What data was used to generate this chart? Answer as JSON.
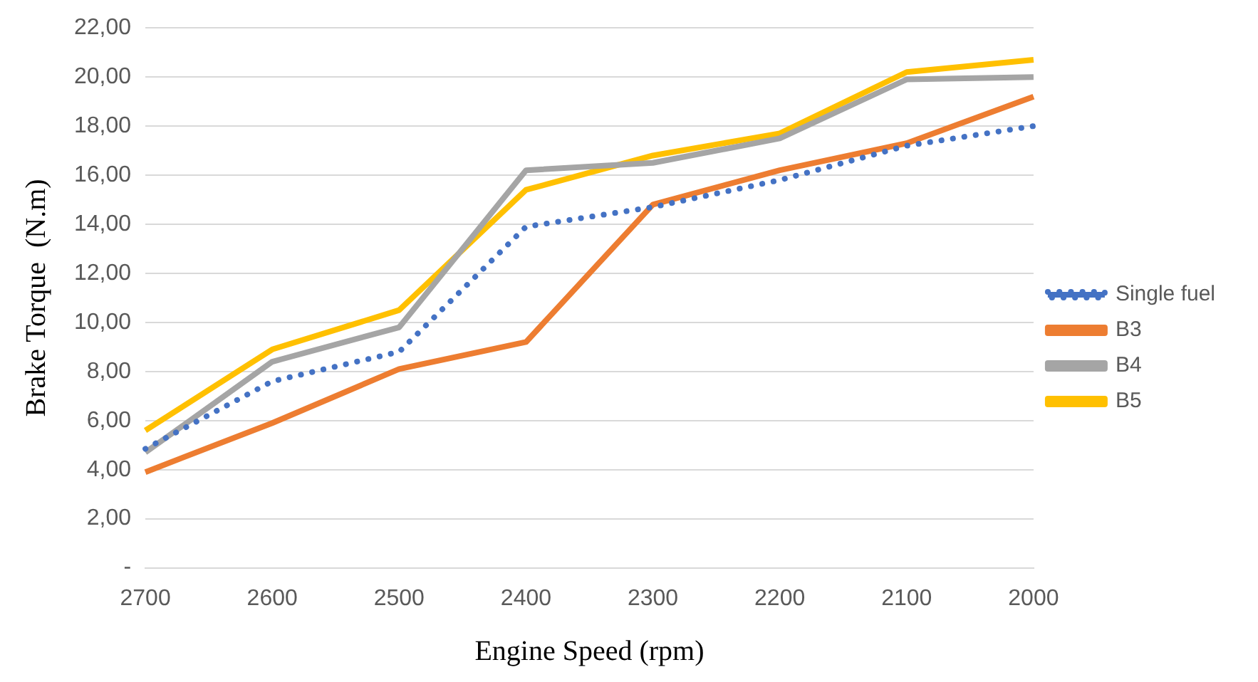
{
  "chart_data": {
    "type": "line",
    "xlabel": "Engine Speed (rpm)",
    "ylabel": "Brake Torque  (N.m)",
    "categories": [
      "2700",
      "2600",
      "2500",
      "2400",
      "2300",
      "2200",
      "2100",
      "2000"
    ],
    "series": [
      {
        "name": "Single fuel",
        "color": "#4472c4",
        "line_style": "dotted",
        "values": [
          4.85,
          7.6,
          8.8,
          13.9,
          14.7,
          15.8,
          17.2,
          18.0
        ]
      },
      {
        "name": "B3",
        "color": "#ed7d31",
        "values": [
          3.9,
          5.9,
          8.1,
          9.2,
          14.8,
          16.2,
          17.3,
          19.2
        ]
      },
      {
        "name": "B4",
        "color": "#a5a5a5",
        "values": [
          4.7,
          8.4,
          9.8,
          16.2,
          16.5,
          17.5,
          19.9,
          20.0
        ]
      },
      {
        "name": "B5",
        "color": "#ffc000",
        "values": [
          5.6,
          8.9,
          10.5,
          15.4,
          16.8,
          17.7,
          20.2,
          20.7
        ]
      }
    ],
    "ylim": [
      0,
      22
    ],
    "yticks": [
      {
        "value": 0,
        "label": "-"
      },
      {
        "value": 2,
        "label": "2,00"
      },
      {
        "value": 4,
        "label": "4,00"
      },
      {
        "value": 6,
        "label": "6,00"
      },
      {
        "value": 8,
        "label": "8,00"
      },
      {
        "value": 10,
        "label": "10,00"
      },
      {
        "value": 12,
        "label": "12,00"
      },
      {
        "value": 14,
        "label": "14,00"
      },
      {
        "value": 16,
        "label": "16,00"
      },
      {
        "value": 18,
        "label": "18,00"
      },
      {
        "value": 20,
        "label": "20,00"
      },
      {
        "value": 22,
        "label": "22,00"
      }
    ],
    "grid": "y",
    "legend": "right",
    "marker": "none"
  }
}
